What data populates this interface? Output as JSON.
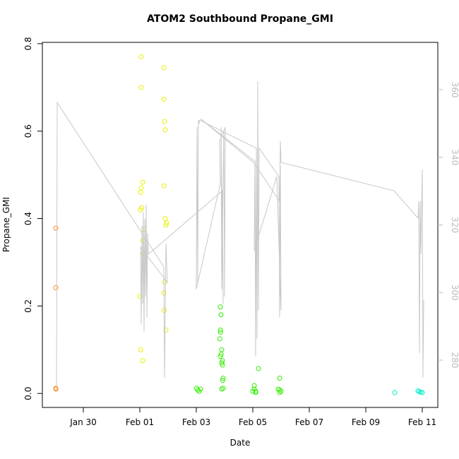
{
  "chart_data": {
    "type": "scatter",
    "title": "ATOM2 Southbound Propane_GMI",
    "x_label": "Date",
    "y_label": "Propane_GMI",
    "xlim": [
      28.55,
      42.55
    ],
    "ylim": [
      -0.032,
      0.803
    ],
    "y2lim": [
      266,
      374
    ],
    "xticks": [
      {
        "value": 30,
        "label": "Jan 30"
      },
      {
        "value": 32,
        "label": "Feb 01"
      },
      {
        "value": 34,
        "label": "Feb 03"
      },
      {
        "value": 36,
        "label": "Feb 05"
      },
      {
        "value": 38,
        "label": "Feb 07"
      },
      {
        "value": 40,
        "label": "Feb 09"
      },
      {
        "value": 42,
        "label": "Feb 11"
      }
    ],
    "yticks": [
      {
        "value": 0,
        "label": "0.0"
      },
      0.2,
      0.4,
      0.6,
      0.8
    ],
    "y2ticks": [
      280,
      300,
      320,
      340,
      360
    ],
    "series": [
      {
        "color": "#ff8c1a",
        "x": [
          29.025,
          29.025,
          29.025,
          29.03
        ],
        "values": [
          0.378,
          0.242,
          0.012,
          0.01
        ]
      },
      {
        "color": "#e8f000",
        "x": [
          32.05,
          32.05,
          32.1,
          32.05,
          32.03,
          32.02,
          32.07,
          32.15,
          32.1,
          32.12,
          32.0,
          32.03,
          32.1,
          32.85,
          32.85,
          32.875,
          32.9,
          32.85,
          32.9,
          32.95,
          32.925,
          32.875,
          32.85,
          32.86,
          32.925
        ],
        "values": [
          0.77,
          0.7,
          0.483,
          0.47,
          0.46,
          0.42,
          0.425,
          0.375,
          0.35,
          0.32,
          0.222,
          0.1,
          0.075,
          0.745,
          0.673,
          0.622,
          0.603,
          0.475,
          0.4,
          0.39,
          0.385,
          0.255,
          0.23,
          0.19,
          0.145
        ]
      },
      {
        "color": "#33ee00",
        "x": [
          34.0,
          34.05,
          34.1,
          34.15,
          34.85,
          34.875,
          34.85,
          34.86,
          34.83,
          34.9,
          34.88,
          34.85,
          34.925,
          34.9,
          34.925,
          34.95,
          34.93,
          34.95,
          34.9,
          36.0,
          36.05,
          36.05,
          36.1,
          36.1,
          36.2,
          36.95,
          36.9,
          36.95,
          37.0,
          36.95
        ],
        "values": [
          0.012,
          0.008,
          0.005,
          0.01,
          0.198,
          0.18,
          0.145,
          0.14,
          0.125,
          0.1,
          0.09,
          0.085,
          0.075,
          0.07,
          0.065,
          0.035,
          0.03,
          0.012,
          0.01,
          0.005,
          0.018,
          0.01,
          0.005,
          0.002,
          0.057,
          0.035,
          0.01,
          0.008,
          0.005,
          0.002
        ]
      },
      {
        "color": "#00eec8",
        "x": [
          41.025,
          41.85,
          41.9,
          41.95,
          42.0
        ],
        "values": [
          0.002,
          0.006,
          0.004,
          0.003,
          0.002
        ]
      },
      {
        "color": "#c8c8c8",
        "type": "line",
        "axis": "y2",
        "x": [
          29.05,
          29.075,
          32.85,
          32.875,
          32.925,
          32.975,
          32.025,
          32.05,
          32.075,
          32.1,
          32.125,
          32.15,
          32.175,
          32.2,
          32.225,
          32.25,
          32.275,
          32.3,
          34.925,
          34.95,
          34.875,
          34.9,
          34.975,
          35.0,
          35.025,
          34.825,
          34.85,
          34.0,
          34.025,
          34.05,
          34.075,
          34.1,
          34.125,
          36.125,
          36.15,
          36.175,
          36.2,
          36.225,
          36.925,
          36.95,
          36.975,
          37.0,
          36.85,
          36.05,
          36.075,
          36.1,
          36.125,
          34.15,
          36.025,
          36.95,
          36.975,
          37.0,
          41.0,
          41.85,
          41.875,
          41.9,
          41.925,
          41.95,
          41.975,
          42.0,
          42.025,
          42.05
        ],
        "values": [
          270.6,
          356.2,
          307.6,
          274.8,
          314.5,
          303,
          313.4,
          290.5,
          319.7,
          296.7,
          323.9,
          288.4,
          321.8,
          298.8,
          326,
          292.6,
          317.6,
          311.3,
          330.1,
          296.7,
          348.9,
          301,
          347.9,
          298.8,
          348.9,
          344.8,
          332.2,
          301,
          348.9,
          303,
          351,
          350,
          351,
          342.7,
          286.3,
          362.5,
          294.7,
          342.7,
          334.3,
          292.6,
          337.5,
          294.7,
          334.3,
          312.4,
          338.5,
          281.1,
          338.5,
          351.4,
          338.5,
          327,
          344.8,
          338.5,
          330.1,
          322,
          327,
          282.1,
          327,
          311.3,
          324.9,
          336.4,
          274.8,
          297.8
        ]
      }
    ]
  }
}
